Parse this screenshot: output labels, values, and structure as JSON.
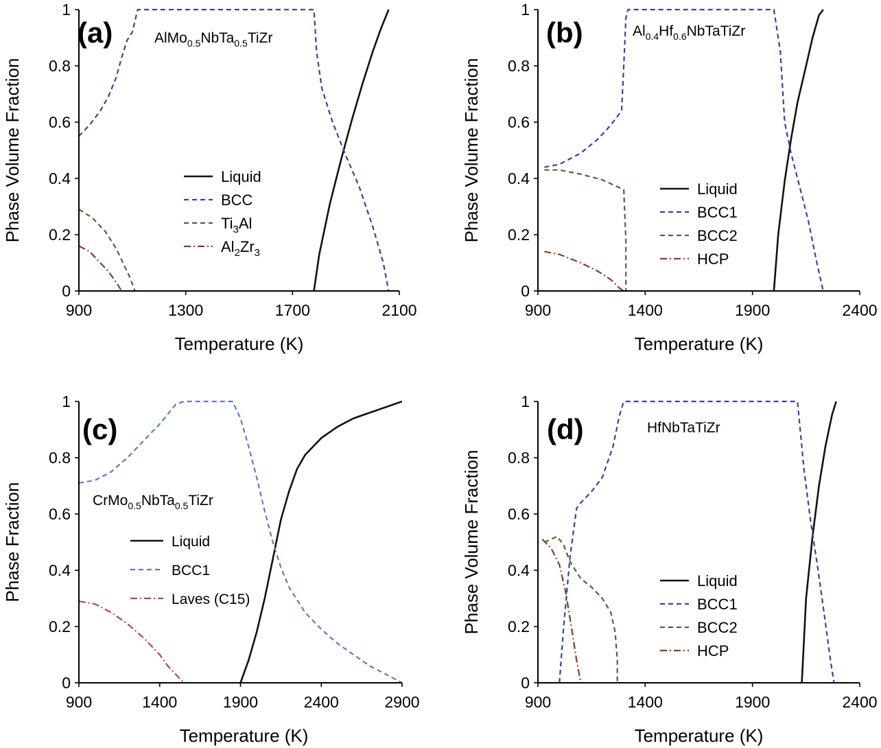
{
  "chart_data": [
    {
      "type": "line",
      "panel_label": "(a)",
      "alloy_label": {
        "parts": [
          {
            "t": "AlMo"
          },
          {
            "t": "0.5",
            "sub": true
          },
          {
            "t": "NbTa"
          },
          {
            "t": "0.5",
            "sub": true
          },
          {
            "t": "TiZr"
          }
        ]
      },
      "xlabel": "Temperature (K)",
      "ylabel": "Phase Volume Fraction",
      "xlim": [
        900,
        2100
      ],
      "ylim": [
        0,
        1
      ],
      "xticks": [
        900,
        1300,
        1700,
        2100
      ],
      "yticks": [
        0,
        0.2,
        0.4,
        0.6,
        0.8,
        1
      ],
      "grid": false,
      "legend_position": "center",
      "series": [
        {
          "name": "Liquid",
          "label_parts": [
            {
              "t": "Liquid"
            }
          ],
          "style": "solid",
          "color": "#111111",
          "x": [
            1780,
            1800,
            1840,
            1880,
            1920,
            1960,
            2000,
            2030,
            2060
          ],
          "y": [
            0,
            0.13,
            0.31,
            0.46,
            0.6,
            0.73,
            0.85,
            0.93,
            1.0
          ]
        },
        {
          "name": "BCC",
          "label_parts": [
            {
              "t": "BCC"
            }
          ],
          "style": "dash",
          "color": "#34449a",
          "x": [
            900,
            940,
            980,
            1010,
            1040,
            1060,
            1080,
            1100,
            1120,
            1500,
            1780,
            1790,
            1810,
            1850,
            1900,
            1950,
            2000,
            2040,
            2060
          ],
          "y": [
            0.55,
            0.59,
            0.64,
            0.69,
            0.76,
            0.83,
            0.89,
            0.92,
            1.0,
            1.0,
            1.0,
            0.85,
            0.72,
            0.6,
            0.48,
            0.37,
            0.23,
            0.1,
            0.0
          ]
        },
        {
          "name": "Ti3Al",
          "label_parts": [
            {
              "t": "Ti"
            },
            {
              "t": "3",
              "sub": true
            },
            {
              "t": "Al"
            }
          ],
          "style": "dash",
          "color": "#55603a",
          "x": [
            900,
            950,
            1000,
            1040,
            1070,
            1090,
            1110
          ],
          "y": [
            0.29,
            0.26,
            0.21,
            0.15,
            0.09,
            0.05,
            0.0
          ]
        },
        {
          "name": "Al2Zr3",
          "label_parts": [
            {
              "t": "Al"
            },
            {
              "t": "2",
              "sub": true
            },
            {
              "t": "Zr"
            },
            {
              "t": "3",
              "sub": true
            }
          ],
          "style": "dashdot",
          "color": "#8a3b22",
          "x": [
            900,
            940,
            980,
            1010,
            1040,
            1060
          ],
          "y": [
            0.16,
            0.14,
            0.1,
            0.07,
            0.03,
            0.0
          ]
        }
      ]
    },
    {
      "type": "line",
      "panel_label": "(b)",
      "alloy_label": {
        "parts": [
          {
            "t": "Al"
          },
          {
            "t": "0.4",
            "sub": true
          },
          {
            "t": "Hf"
          },
          {
            "t": "0.6",
            "sub": true
          },
          {
            "t": "NbTaTiZr"
          }
        ]
      },
      "xlabel": "Temperature (K)",
      "ylabel": "Phase Volume Fraction",
      "xlim": [
        900,
        2400
      ],
      "ylim": [
        0,
        1
      ],
      "xticks": [
        900,
        1400,
        1900,
        2400
      ],
      "yticks": [
        0,
        0.2,
        0.4,
        0.6,
        0.8,
        1
      ],
      "grid": false,
      "legend_position": "center",
      "series": [
        {
          "name": "Liquid",
          "label_parts": [
            {
              "t": "Liquid"
            }
          ],
          "style": "solid",
          "color": "#111111",
          "x": [
            2000,
            2020,
            2050,
            2080,
            2110,
            2150,
            2180,
            2210,
            2230
          ],
          "y": [
            0,
            0.2,
            0.39,
            0.54,
            0.67,
            0.8,
            0.9,
            0.98,
            1.0
          ]
        },
        {
          "name": "BCC1",
          "label_parts": [
            {
              "t": "BCC1"
            }
          ],
          "style": "dash",
          "color": "#34449a",
          "x": [
            930,
            1000,
            1100,
            1180,
            1240,
            1290,
            1300,
            1310,
            1320,
            2000,
            2030,
            2050,
            2080,
            2120,
            2160,
            2200,
            2230
          ],
          "y": [
            0.44,
            0.45,
            0.49,
            0.54,
            0.59,
            0.64,
            0.8,
            0.97,
            1.0,
            1.0,
            0.85,
            0.6,
            0.49,
            0.37,
            0.25,
            0.1,
            0.0
          ]
        },
        {
          "name": "BCC2",
          "label_parts": [
            {
              "t": "BCC2"
            }
          ],
          "style": "dash",
          "color": "#55603a",
          "x": [
            930,
            1000,
            1100,
            1200,
            1300,
            1310,
            1310
          ],
          "y": [
            0.43,
            0.43,
            0.415,
            0.395,
            0.36,
            0.18,
            0.0
          ]
        },
        {
          "name": "HCP",
          "label_parts": [
            {
              "t": "HCP"
            }
          ],
          "style": "dashdot",
          "color": "#8a3b22",
          "x": [
            930,
            1000,
            1100,
            1180,
            1240,
            1280,
            1300
          ],
          "y": [
            0.14,
            0.13,
            0.1,
            0.07,
            0.04,
            0.01,
            0.0
          ]
        }
      ]
    },
    {
      "type": "line",
      "panel_label": "(c)",
      "alloy_label": {
        "parts": [
          {
            "t": "CrMo"
          },
          {
            "t": "0.5",
            "sub": true
          },
          {
            "t": "NbTa"
          },
          {
            "t": "0.5",
            "sub": true
          },
          {
            "t": "TiZr"
          }
        ]
      },
      "xlabel": "Temperature (K)",
      "ylabel": "Phase Fraction",
      "xlim": [
        900,
        2900
      ],
      "ylim": [
        0,
        1
      ],
      "xticks": [
        900,
        1400,
        1900,
        2400,
        2900
      ],
      "yticks": [
        0,
        0.2,
        0.4,
        0.6,
        0.8,
        1
      ],
      "grid": false,
      "legend_position": "center-left",
      "series": [
        {
          "name": "Liquid",
          "label_parts": [
            {
              "t": "Liquid"
            }
          ],
          "style": "solid",
          "color": "#111111",
          "x": [
            1900,
            1950,
            2000,
            2050,
            2100,
            2150,
            2200,
            2250,
            2300,
            2400,
            2500,
            2600,
            2700,
            2800,
            2900
          ],
          "y": [
            0,
            0.08,
            0.18,
            0.3,
            0.44,
            0.58,
            0.68,
            0.76,
            0.81,
            0.87,
            0.91,
            0.94,
            0.96,
            0.98,
            1.0
          ]
        },
        {
          "name": "BCC1",
          "label_parts": [
            {
              "t": "BCC1"
            }
          ],
          "style": "dash",
          "color": "#5c7bc0",
          "x": [
            900,
            1000,
            1100,
            1200,
            1300,
            1400,
            1500,
            1550,
            1850,
            1900,
            1950,
            2000,
            2050,
            2100,
            2150,
            2200,
            2300,
            2400,
            2500,
            2600,
            2700,
            2800,
            2900
          ],
          "y": [
            0.71,
            0.72,
            0.75,
            0.8,
            0.86,
            0.92,
            0.99,
            1.0,
            1.0,
            0.94,
            0.84,
            0.73,
            0.61,
            0.5,
            0.41,
            0.34,
            0.25,
            0.19,
            0.14,
            0.1,
            0.06,
            0.03,
            0.0
          ]
        },
        {
          "name": "Laves (C15)",
          "label_parts": [
            {
              "t": "Laves (C15)"
            }
          ],
          "style": "dashdot",
          "color": "#b24a45",
          "x": [
            900,
            1000,
            1100,
            1200,
            1300,
            1400,
            1450,
            1500,
            1550
          ],
          "y": [
            0.29,
            0.28,
            0.25,
            0.21,
            0.16,
            0.1,
            0.06,
            0.03,
            0.0
          ]
        }
      ]
    },
    {
      "type": "line",
      "panel_label": "(d)",
      "alloy_label": {
        "parts": [
          {
            "t": "HfNbTaTiZr"
          }
        ]
      },
      "xlabel": "Temperature (K)",
      "ylabel": "Phase Volume Fraction",
      "xlim": [
        900,
        2400
      ],
      "ylim": [
        0,
        1
      ],
      "xticks": [
        900,
        1400,
        1900,
        2400
      ],
      "yticks": [
        0,
        0.2,
        0.4,
        0.6,
        0.8,
        1
      ],
      "grid": false,
      "legend_position": "center-right",
      "series": [
        {
          "name": "Liquid",
          "label_parts": [
            {
              "t": "Liquid"
            }
          ],
          "style": "solid",
          "color": "#111111",
          "x": [
            2130,
            2150,
            2180,
            2210,
            2240,
            2270,
            2290
          ],
          "y": [
            0,
            0.3,
            0.52,
            0.7,
            0.84,
            0.95,
            1.0
          ]
        },
        {
          "name": "BCC1",
          "label_parts": [
            {
              "t": "BCC1"
            }
          ],
          "style": "dash",
          "color": "#34449a",
          "x": [
            1000,
            1020,
            1050,
            1080,
            1100,
            1150,
            1200,
            1250,
            1280,
            1300,
            2110,
            2140,
            2170,
            2200,
            2230,
            2260,
            2280
          ],
          "y": [
            0.0,
            0.2,
            0.45,
            0.62,
            0.64,
            0.68,
            0.73,
            0.84,
            0.95,
            1.0,
            1.0,
            0.76,
            0.58,
            0.43,
            0.27,
            0.1,
            0.0
          ]
        },
        {
          "name": "BCC2",
          "label_parts": [
            {
              "t": "BCC2"
            }
          ],
          "style": "dash",
          "color": "#55603a",
          "x": [
            930,
            960,
            990,
            1020,
            1050,
            1100,
            1150,
            1200,
            1240,
            1260,
            1270,
            1270
          ],
          "y": [
            0.5,
            0.51,
            0.52,
            0.49,
            0.43,
            0.37,
            0.34,
            0.3,
            0.25,
            0.18,
            0.08,
            0.0
          ]
        },
        {
          "name": "HCP",
          "label_parts": [
            {
              "t": "HCP"
            }
          ],
          "style": "dashdot",
          "color": "#8a3b22",
          "x": [
            920,
            960,
            1000,
            1030,
            1060,
            1080,
            1100
          ],
          "y": [
            0.51,
            0.48,
            0.42,
            0.32,
            0.18,
            0.08,
            0.0
          ]
        }
      ]
    }
  ]
}
